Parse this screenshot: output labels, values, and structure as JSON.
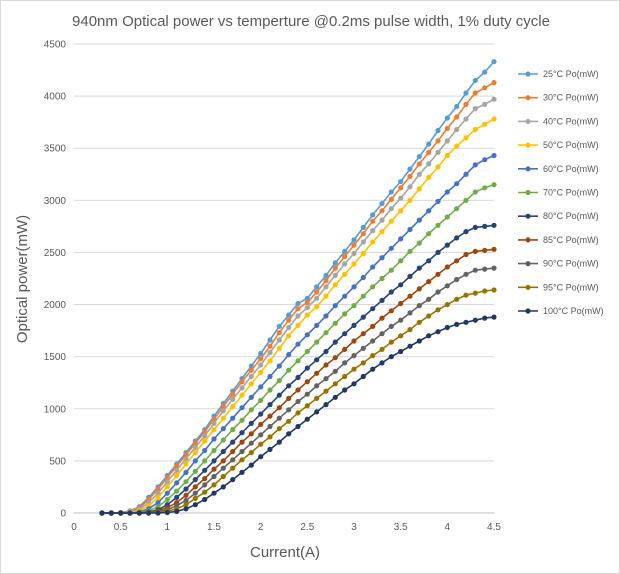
{
  "chart_data": {
    "type": "line",
    "title": "940nm Optical power vs temperture @0.2ms pulse width, 1% duty cycle",
    "xlabel": "Current(A)",
    "ylabel": "Optical power(mW)",
    "xlim": [
      0,
      4.5
    ],
    "ylim": [
      0,
      4500
    ],
    "xticks": [
      "0",
      "0.5",
      "1",
      "1.5",
      "2",
      "2.5",
      "3",
      "3.5",
      "4",
      "4.5"
    ],
    "yticks": [
      "0",
      "500",
      "1000",
      "1500",
      "2000",
      "2500",
      "3000",
      "3500",
      "4000",
      "4500"
    ],
    "grid": "horizontal",
    "legend_position": "right",
    "x": [
      0.3,
      0.4,
      0.5,
      0.6,
      0.7,
      0.8,
      0.9,
      1.0,
      1.1,
      1.2,
      1.3,
      1.4,
      1.5,
      1.6,
      1.7,
      1.8,
      1.9,
      2.0,
      2.1,
      2.2,
      2.3,
      2.4,
      2.5,
      2.6,
      2.7,
      2.8,
      2.9,
      3.0,
      3.1,
      3.2,
      3.3,
      3.4,
      3.5,
      3.6,
      3.7,
      3.8,
      3.9,
      4.0,
      4.1,
      4.2,
      4.3,
      4.4,
      4.5
    ],
    "series": [
      {
        "name": "25°C Po(mW)",
        "color": "#5B9BD5",
        "values": [
          0,
          0,
          5,
          20,
          60,
          150,
          250,
          360,
          470,
          580,
          690,
          800,
          930,
          1050,
          1170,
          1290,
          1410,
          1530,
          1660,
          1790,
          1900,
          2010,
          2060,
          2170,
          2280,
          2400,
          2510,
          2620,
          2740,
          2860,
          2970,
          3080,
          3180,
          3300,
          3420,
          3540,
          3670,
          3790,
          3900,
          4030,
          4150,
          4230,
          4330
        ]
      },
      {
        "name": "30°C Po(mW)",
        "color": "#ED7D31",
        "values": [
          0,
          0,
          3,
          15,
          50,
          130,
          230,
          340,
          450,
          560,
          670,
          780,
          900,
          1020,
          1140,
          1260,
          1370,
          1480,
          1600,
          1730,
          1850,
          1960,
          2020,
          2120,
          2230,
          2350,
          2460,
          2570,
          2680,
          2800,
          2900,
          3010,
          3120,
          3230,
          3350,
          3460,
          3570,
          3690,
          3800,
          3920,
          4030,
          4080,
          4130
        ]
      },
      {
        "name": "40°C Po(mW)",
        "color": "#A5A5A5",
        "values": [
          0,
          0,
          2,
          10,
          35,
          100,
          190,
          300,
          410,
          520,
          630,
          740,
          860,
          980,
          1090,
          1200,
          1310,
          1420,
          1540,
          1660,
          1780,
          1890,
          1970,
          2060,
          2170,
          2280,
          2390,
          2490,
          2600,
          2710,
          2810,
          2920,
          3020,
          3130,
          3250,
          3350,
          3460,
          3570,
          3680,
          3780,
          3880,
          3920,
          3970
        ]
      },
      {
        "name": "50°C Po(mW)",
        "color": "#FFC000",
        "values": [
          0,
          0,
          0,
          5,
          20,
          70,
          150,
          250,
          360,
          470,
          580,
          690,
          800,
          910,
          1020,
          1130,
          1240,
          1350,
          1460,
          1580,
          1700,
          1800,
          1900,
          1980,
          2080,
          2190,
          2290,
          2390,
          2490,
          2600,
          2700,
          2800,
          2900,
          3000,
          3110,
          3220,
          3320,
          3430,
          3520,
          3600,
          3680,
          3730,
          3780
        ]
      },
      {
        "name": "60°C Po(mW)",
        "color": "#4472C4",
        "values": [
          0,
          0,
          0,
          0,
          10,
          40,
          100,
          190,
          290,
          390,
          500,
          600,
          710,
          810,
          910,
          1010,
          1110,
          1210,
          1310,
          1410,
          1520,
          1620,
          1710,
          1800,
          1890,
          1990,
          2080,
          2170,
          2260,
          2360,
          2450,
          2540,
          2630,
          2720,
          2810,
          2900,
          2990,
          3080,
          3160,
          3250,
          3340,
          3390,
          3430
        ]
      },
      {
        "name": "70°C Po(mW)",
        "color": "#70AD47",
        "values": [
          0,
          0,
          0,
          0,
          5,
          20,
          60,
          130,
          210,
          300,
          400,
          500,
          600,
          700,
          800,
          890,
          990,
          1080,
          1180,
          1270,
          1370,
          1460,
          1550,
          1640,
          1730,
          1820,
          1910,
          1990,
          2080,
          2170,
          2250,
          2330,
          2420,
          2510,
          2590,
          2680,
          2760,
          2840,
          2920,
          3000,
          3080,
          3120,
          3150
        ]
      },
      {
        "name": "80°C Po(mW)",
        "color": "#264478",
        "values": [
          0,
          0,
          0,
          0,
          0,
          10,
          30,
          80,
          150,
          230,
          320,
          410,
          500,
          590,
          680,
          770,
          860,
          950,
          1040,
          1130,
          1220,
          1300,
          1390,
          1470,
          1550,
          1640,
          1720,
          1800,
          1880,
          1960,
          2040,
          2120,
          2190,
          2270,
          2350,
          2420,
          2500,
          2570,
          2640,
          2700,
          2740,
          2750,
          2760
        ]
      },
      {
        "name": "85°C Po(mW)",
        "color": "#9E480E",
        "values": [
          0,
          0,
          0,
          0,
          0,
          5,
          20,
          50,
          100,
          170,
          250,
          330,
          420,
          500,
          590,
          680,
          760,
          850,
          930,
          1010,
          1100,
          1180,
          1260,
          1340,
          1420,
          1490,
          1570,
          1650,
          1720,
          1790,
          1870,
          1940,
          2010,
          2080,
          2150,
          2220,
          2290,
          2360,
          2420,
          2480,
          2510,
          2520,
          2530
        ]
      },
      {
        "name": "90°C Po(mW)",
        "color": "#636363",
        "values": [
          0,
          0,
          0,
          0,
          0,
          0,
          10,
          30,
          70,
          120,
          190,
          270,
          350,
          430,
          510,
          590,
          670,
          750,
          830,
          910,
          990,
          1070,
          1140,
          1220,
          1290,
          1360,
          1440,
          1510,
          1580,
          1650,
          1720,
          1790,
          1850,
          1920,
          1990,
          2050,
          2120,
          2180,
          2240,
          2290,
          2330,
          2340,
          2350
        ]
      },
      {
        "name": "95°C Po(mW)",
        "color": "#997300",
        "values": [
          0,
          0,
          0,
          0,
          0,
          0,
          5,
          15,
          40,
          80,
          140,
          200,
          270,
          350,
          430,
          510,
          580,
          660,
          730,
          810,
          880,
          960,
          1030,
          1100,
          1170,
          1240,
          1310,
          1380,
          1440,
          1510,
          1570,
          1640,
          1700,
          1760,
          1830,
          1890,
          1950,
          2000,
          2050,
          2090,
          2110,
          2130,
          2140
        ]
      },
      {
        "name": "100°C Po(mW)",
        "color": "#203864",
        "values": [
          0,
          0,
          0,
          0,
          0,
          0,
          0,
          5,
          15,
          40,
          80,
          130,
          190,
          250,
          320,
          390,
          460,
          540,
          610,
          680,
          760,
          830,
          900,
          970,
          1040,
          1110,
          1180,
          1240,
          1310,
          1380,
          1440,
          1500,
          1550,
          1600,
          1650,
          1700,
          1740,
          1780,
          1810,
          1830,
          1850,
          1870,
          1880
        ]
      }
    ]
  }
}
